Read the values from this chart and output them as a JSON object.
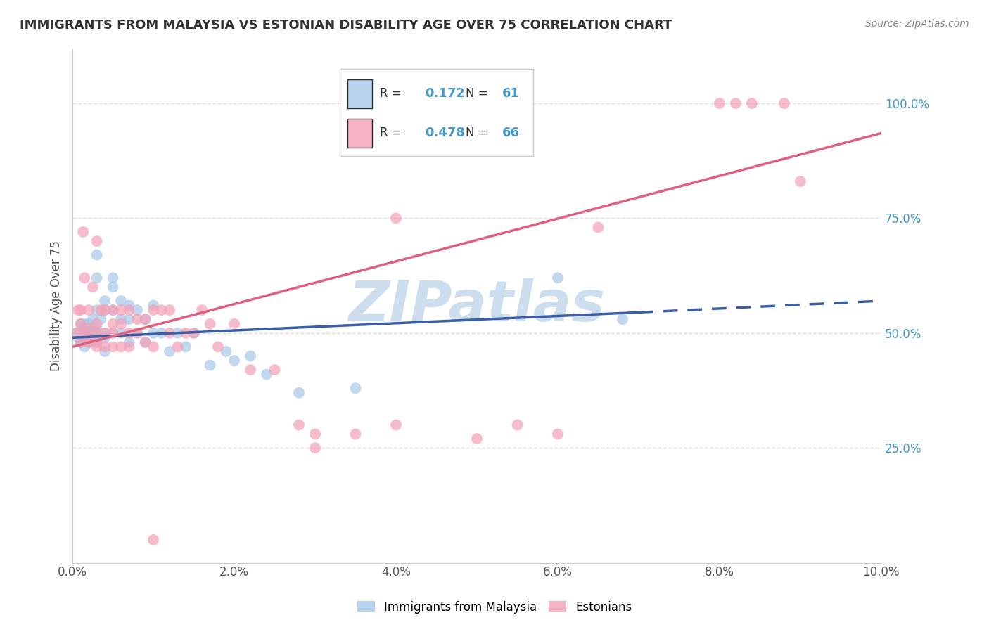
{
  "title": "IMMIGRANTS FROM MALAYSIA VS ESTONIAN DISABILITY AGE OVER 75 CORRELATION CHART",
  "source": "Source: ZipAtlas.com",
  "ylabel": "Disability Age Over 75",
  "x_min": 0.0,
  "x_max": 0.1,
  "y_min": 0.0,
  "y_max": 1.12,
  "x_ticks": [
    0.0,
    0.02,
    0.04,
    0.06,
    0.08,
    0.1
  ],
  "x_tick_labels": [
    "0.0%",
    "2.0%",
    "4.0%",
    "6.0%",
    "8.0%",
    "10.0%"
  ],
  "y_ticks_right": [
    0.25,
    0.5,
    0.75,
    1.0
  ],
  "y_tick_labels_right": [
    "25.0%",
    "50.0%",
    "75.0%",
    "100.0%"
  ],
  "legend_labels": [
    "Immigrants from Malaysia",
    "Estonians"
  ],
  "blue_R": 0.172,
  "blue_N": 61,
  "pink_R": 0.478,
  "pink_N": 66,
  "blue_scatter_color": "#a8c8e8",
  "pink_scatter_color": "#f4a0b5",
  "line_blue": "#3a5fa8",
  "line_pink": "#e06080",
  "watermark": "ZIPatlas",
  "blue_line_x0": 0.0,
  "blue_line_y0": 0.49,
  "blue_line_x1": 0.07,
  "blue_line_y1": 0.545,
  "blue_line_x2": 0.1,
  "blue_line_y2": 0.57,
  "pink_line_x0": 0.0,
  "pink_line_y0": 0.47,
  "pink_line_x1": 0.1,
  "pink_line_y1": 0.935,
  "blue_points_x": [
    0.0005,
    0.0007,
    0.001,
    0.001,
    0.001,
    0.0012,
    0.0013,
    0.0015,
    0.0015,
    0.0015,
    0.002,
    0.002,
    0.002,
    0.002,
    0.002,
    0.002,
    0.002,
    0.0025,
    0.0025,
    0.003,
    0.003,
    0.003,
    0.003,
    0.003,
    0.003,
    0.0035,
    0.004,
    0.004,
    0.004,
    0.004,
    0.004,
    0.005,
    0.005,
    0.005,
    0.005,
    0.006,
    0.006,
    0.006,
    0.007,
    0.007,
    0.007,
    0.008,
    0.008,
    0.009,
    0.009,
    0.01,
    0.01,
    0.011,
    0.012,
    0.013,
    0.014,
    0.015,
    0.017,
    0.019,
    0.02,
    0.022,
    0.024,
    0.028,
    0.035,
    0.06,
    0.068
  ],
  "blue_points_y": [
    0.5,
    0.49,
    0.52,
    0.5,
    0.48,
    0.51,
    0.49,
    0.5,
    0.52,
    0.47,
    0.5,
    0.48,
    0.51,
    0.52,
    0.49,
    0.48,
    0.5,
    0.53,
    0.51,
    0.67,
    0.62,
    0.55,
    0.51,
    0.5,
    0.48,
    0.53,
    0.57,
    0.55,
    0.5,
    0.49,
    0.46,
    0.62,
    0.6,
    0.55,
    0.5,
    0.57,
    0.53,
    0.5,
    0.56,
    0.53,
    0.48,
    0.55,
    0.5,
    0.53,
    0.48,
    0.56,
    0.5,
    0.5,
    0.46,
    0.5,
    0.47,
    0.5,
    0.43,
    0.46,
    0.44,
    0.45,
    0.41,
    0.37,
    0.38,
    0.62,
    0.53
  ],
  "pink_points_x": [
    0.0005,
    0.0007,
    0.001,
    0.001,
    0.001,
    0.0013,
    0.0015,
    0.0015,
    0.002,
    0.002,
    0.002,
    0.002,
    0.0025,
    0.003,
    0.003,
    0.003,
    0.003,
    0.003,
    0.0035,
    0.004,
    0.004,
    0.004,
    0.005,
    0.005,
    0.005,
    0.005,
    0.006,
    0.006,
    0.006,
    0.007,
    0.007,
    0.007,
    0.008,
    0.008,
    0.009,
    0.009,
    0.01,
    0.01,
    0.011,
    0.012,
    0.012,
    0.013,
    0.014,
    0.015,
    0.016,
    0.017,
    0.018,
    0.02,
    0.022,
    0.025,
    0.028,
    0.03,
    0.035,
    0.04,
    0.05,
    0.055,
    0.06,
    0.065,
    0.08,
    0.082,
    0.084,
    0.088,
    0.09,
    0.04,
    0.03,
    0.01
  ],
  "pink_points_y": [
    0.5,
    0.55,
    0.55,
    0.52,
    0.48,
    0.72,
    0.62,
    0.5,
    0.55,
    0.51,
    0.49,
    0.48,
    0.6,
    0.7,
    0.52,
    0.5,
    0.48,
    0.47,
    0.55,
    0.55,
    0.5,
    0.47,
    0.55,
    0.52,
    0.5,
    0.47,
    0.55,
    0.52,
    0.47,
    0.55,
    0.5,
    0.47,
    0.53,
    0.5,
    0.53,
    0.48,
    0.55,
    0.47,
    0.55,
    0.55,
    0.5,
    0.47,
    0.5,
    0.5,
    0.55,
    0.52,
    0.47,
    0.52,
    0.42,
    0.42,
    0.3,
    0.28,
    0.28,
    0.3,
    0.27,
    0.3,
    0.28,
    0.73,
    1.0,
    1.0,
    1.0,
    1.0,
    0.83,
    0.75,
    0.25,
    0.05
  ],
  "bg_color": "#ffffff",
  "grid_color": "#dddddd",
  "title_color": "#333333",
  "axis_label_color": "#555555",
  "right_axis_color": "#4499cc",
  "watermark_color": "#ccdded"
}
